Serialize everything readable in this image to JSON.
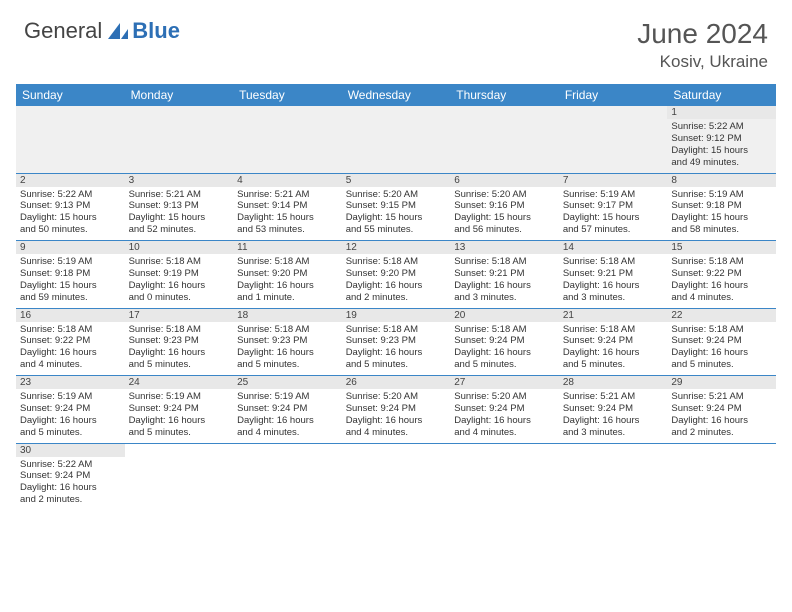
{
  "logo": {
    "text_general": "General",
    "text_blue": "Blue"
  },
  "header": {
    "month_title": "June 2024",
    "location": "Kosiv, Ukraine"
  },
  "colors": {
    "header_bg": "#3b86c7",
    "header_text": "#ffffff",
    "daynum_bg": "#e8e8e8",
    "cell_border": "#3b86c7",
    "body_text": "#333333",
    "title_text": "#555555"
  },
  "day_names": [
    "Sunday",
    "Monday",
    "Tuesday",
    "Wednesday",
    "Thursday",
    "Friday",
    "Saturday"
  ],
  "weeks": [
    [
      null,
      null,
      null,
      null,
      null,
      null,
      {
        "n": "1",
        "sunrise": "Sunrise: 5:22 AM",
        "sunset": "Sunset: 9:12 PM",
        "daylight1": "Daylight: 15 hours",
        "daylight2": "and 49 minutes."
      }
    ],
    [
      {
        "n": "2",
        "sunrise": "Sunrise: 5:22 AM",
        "sunset": "Sunset: 9:13 PM",
        "daylight1": "Daylight: 15 hours",
        "daylight2": "and 50 minutes."
      },
      {
        "n": "3",
        "sunrise": "Sunrise: 5:21 AM",
        "sunset": "Sunset: 9:13 PM",
        "daylight1": "Daylight: 15 hours",
        "daylight2": "and 52 minutes."
      },
      {
        "n": "4",
        "sunrise": "Sunrise: 5:21 AM",
        "sunset": "Sunset: 9:14 PM",
        "daylight1": "Daylight: 15 hours",
        "daylight2": "and 53 minutes."
      },
      {
        "n": "5",
        "sunrise": "Sunrise: 5:20 AM",
        "sunset": "Sunset: 9:15 PM",
        "daylight1": "Daylight: 15 hours",
        "daylight2": "and 55 minutes."
      },
      {
        "n": "6",
        "sunrise": "Sunrise: 5:20 AM",
        "sunset": "Sunset: 9:16 PM",
        "daylight1": "Daylight: 15 hours",
        "daylight2": "and 56 minutes."
      },
      {
        "n": "7",
        "sunrise": "Sunrise: 5:19 AM",
        "sunset": "Sunset: 9:17 PM",
        "daylight1": "Daylight: 15 hours",
        "daylight2": "and 57 minutes."
      },
      {
        "n": "8",
        "sunrise": "Sunrise: 5:19 AM",
        "sunset": "Sunset: 9:18 PM",
        "daylight1": "Daylight: 15 hours",
        "daylight2": "and 58 minutes."
      }
    ],
    [
      {
        "n": "9",
        "sunrise": "Sunrise: 5:19 AM",
        "sunset": "Sunset: 9:18 PM",
        "daylight1": "Daylight: 15 hours",
        "daylight2": "and 59 minutes."
      },
      {
        "n": "10",
        "sunrise": "Sunrise: 5:18 AM",
        "sunset": "Sunset: 9:19 PM",
        "daylight1": "Daylight: 16 hours",
        "daylight2": "and 0 minutes."
      },
      {
        "n": "11",
        "sunrise": "Sunrise: 5:18 AM",
        "sunset": "Sunset: 9:20 PM",
        "daylight1": "Daylight: 16 hours",
        "daylight2": "and 1 minute."
      },
      {
        "n": "12",
        "sunrise": "Sunrise: 5:18 AM",
        "sunset": "Sunset: 9:20 PM",
        "daylight1": "Daylight: 16 hours",
        "daylight2": "and 2 minutes."
      },
      {
        "n": "13",
        "sunrise": "Sunrise: 5:18 AM",
        "sunset": "Sunset: 9:21 PM",
        "daylight1": "Daylight: 16 hours",
        "daylight2": "and 3 minutes."
      },
      {
        "n": "14",
        "sunrise": "Sunrise: 5:18 AM",
        "sunset": "Sunset: 9:21 PM",
        "daylight1": "Daylight: 16 hours",
        "daylight2": "and 3 minutes."
      },
      {
        "n": "15",
        "sunrise": "Sunrise: 5:18 AM",
        "sunset": "Sunset: 9:22 PM",
        "daylight1": "Daylight: 16 hours",
        "daylight2": "and 4 minutes."
      }
    ],
    [
      {
        "n": "16",
        "sunrise": "Sunrise: 5:18 AM",
        "sunset": "Sunset: 9:22 PM",
        "daylight1": "Daylight: 16 hours",
        "daylight2": "and 4 minutes."
      },
      {
        "n": "17",
        "sunrise": "Sunrise: 5:18 AM",
        "sunset": "Sunset: 9:23 PM",
        "daylight1": "Daylight: 16 hours",
        "daylight2": "and 5 minutes."
      },
      {
        "n": "18",
        "sunrise": "Sunrise: 5:18 AM",
        "sunset": "Sunset: 9:23 PM",
        "daylight1": "Daylight: 16 hours",
        "daylight2": "and 5 minutes."
      },
      {
        "n": "19",
        "sunrise": "Sunrise: 5:18 AM",
        "sunset": "Sunset: 9:23 PM",
        "daylight1": "Daylight: 16 hours",
        "daylight2": "and 5 minutes."
      },
      {
        "n": "20",
        "sunrise": "Sunrise: 5:18 AM",
        "sunset": "Sunset: 9:24 PM",
        "daylight1": "Daylight: 16 hours",
        "daylight2": "and 5 minutes."
      },
      {
        "n": "21",
        "sunrise": "Sunrise: 5:18 AM",
        "sunset": "Sunset: 9:24 PM",
        "daylight1": "Daylight: 16 hours",
        "daylight2": "and 5 minutes."
      },
      {
        "n": "22",
        "sunrise": "Sunrise: 5:18 AM",
        "sunset": "Sunset: 9:24 PM",
        "daylight1": "Daylight: 16 hours",
        "daylight2": "and 5 minutes."
      }
    ],
    [
      {
        "n": "23",
        "sunrise": "Sunrise: 5:19 AM",
        "sunset": "Sunset: 9:24 PM",
        "daylight1": "Daylight: 16 hours",
        "daylight2": "and 5 minutes."
      },
      {
        "n": "24",
        "sunrise": "Sunrise: 5:19 AM",
        "sunset": "Sunset: 9:24 PM",
        "daylight1": "Daylight: 16 hours",
        "daylight2": "and 5 minutes."
      },
      {
        "n": "25",
        "sunrise": "Sunrise: 5:19 AM",
        "sunset": "Sunset: 9:24 PM",
        "daylight1": "Daylight: 16 hours",
        "daylight2": "and 4 minutes."
      },
      {
        "n": "26",
        "sunrise": "Sunrise: 5:20 AM",
        "sunset": "Sunset: 9:24 PM",
        "daylight1": "Daylight: 16 hours",
        "daylight2": "and 4 minutes."
      },
      {
        "n": "27",
        "sunrise": "Sunrise: 5:20 AM",
        "sunset": "Sunset: 9:24 PM",
        "daylight1": "Daylight: 16 hours",
        "daylight2": "and 4 minutes."
      },
      {
        "n": "28",
        "sunrise": "Sunrise: 5:21 AM",
        "sunset": "Sunset: 9:24 PM",
        "daylight1": "Daylight: 16 hours",
        "daylight2": "and 3 minutes."
      },
      {
        "n": "29",
        "sunrise": "Sunrise: 5:21 AM",
        "sunset": "Sunset: 9:24 PM",
        "daylight1": "Daylight: 16 hours",
        "daylight2": "and 2 minutes."
      }
    ],
    [
      {
        "n": "30",
        "sunrise": "Sunrise: 5:22 AM",
        "sunset": "Sunset: 9:24 PM",
        "daylight1": "Daylight: 16 hours",
        "daylight2": "and 2 minutes."
      },
      null,
      null,
      null,
      null,
      null,
      null
    ]
  ]
}
